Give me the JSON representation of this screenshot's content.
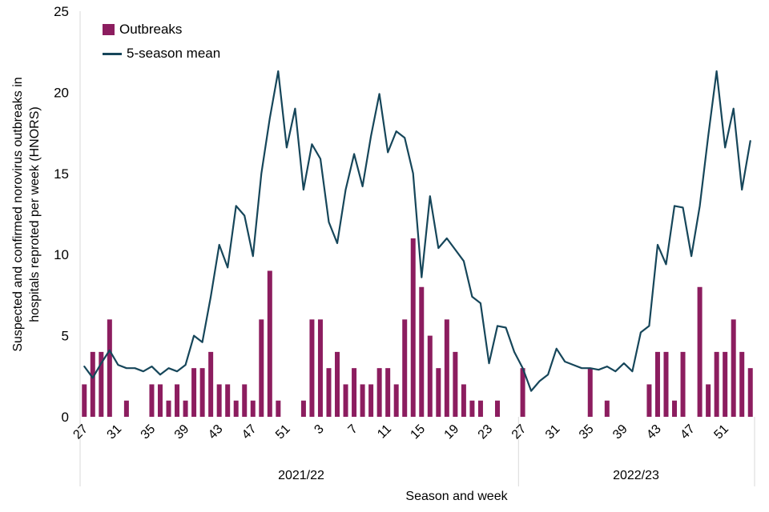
{
  "figure": {
    "y_axis_title_lines": [
      "Suspected and confirmed norovirus outbreaks in",
      "hospitals  reproted per week (HNORS)"
    ],
    "x_axis_title": "Season and week"
  },
  "chart_data": {
    "type": "bar",
    "title": "",
    "xlabel": "Season and week",
    "ylabel": "Suspected and confirmed norovirus outbreaks in hospitals reproted per week (HNORS)",
    "ylim": [
      0,
      25
    ],
    "y_ticks": [
      0,
      5,
      10,
      15,
      20,
      25
    ],
    "grid": false,
    "legend_position": "top-left",
    "x_tick_labels": [
      "27",
      "31",
      "35",
      "39",
      "43",
      "47",
      "51",
      "3",
      "7",
      "11",
      "15",
      "19",
      "23",
      "27",
      "31",
      "35",
      "39",
      "43",
      "47",
      "51"
    ],
    "x_tick_step": 4,
    "seasons": [
      {
        "name": "2021/22",
        "start_index": 0,
        "end_index": 51
      },
      {
        "name": "2022/23",
        "start_index": 52,
        "end_index": 79
      }
    ],
    "categories": [
      "27",
      "28",
      "29",
      "30",
      "31",
      "32",
      "33",
      "34",
      "35",
      "36",
      "37",
      "38",
      "39",
      "40",
      "41",
      "42",
      "43",
      "44",
      "45",
      "46",
      "47",
      "48",
      "49",
      "50",
      "51",
      "52",
      "1",
      "2",
      "3",
      "4",
      "5",
      "6",
      "7",
      "8",
      "9",
      "10",
      "11",
      "12",
      "13",
      "14",
      "15",
      "16",
      "17",
      "18",
      "19",
      "20",
      "21",
      "22",
      "23",
      "24",
      "25",
      "26",
      "27",
      "28",
      "29",
      "30",
      "31",
      "32",
      "33",
      "34",
      "35",
      "36",
      "37",
      "38",
      "39",
      "40",
      "41",
      "42",
      "43",
      "44",
      "45",
      "46",
      "47",
      "48",
      "49",
      "50",
      "51",
      "52",
      "1",
      "2"
    ],
    "series": [
      {
        "name": "Outbreaks",
        "type": "bar",
        "color": "#8c1d5f",
        "values": [
          2,
          4,
          4,
          6,
          0,
          1,
          0,
          0,
          2,
          2,
          1,
          2,
          1,
          3,
          3,
          4,
          2,
          2,
          1,
          2,
          1,
          6,
          9,
          1,
          0,
          0,
          1,
          6,
          6,
          3,
          4,
          2,
          3,
          2,
          2,
          3,
          3,
          2,
          6,
          11,
          8,
          5,
          3,
          6,
          4,
          2,
          1,
          1,
          0,
          1,
          0,
          0,
          3,
          0,
          0,
          0,
          0,
          0,
          0,
          0,
          3,
          0,
          1,
          0,
          0,
          0,
          0,
          2,
          4,
          4,
          1,
          4,
          0,
          8,
          2,
          4,
          4,
          6,
          4,
          3
        ]
      },
      {
        "name": "5-season mean",
        "type": "line",
        "color": "#16465a",
        "values": [
          3.1,
          2.4,
          3.3,
          4.1,
          3.2,
          3.0,
          3.0,
          2.8,
          3.1,
          2.6,
          3.0,
          2.8,
          3.2,
          5.0,
          4.6,
          7.4,
          10.6,
          9.2,
          13.0,
          12.4,
          9.9,
          15.0,
          18.4,
          21.3,
          16.6,
          19.0,
          14.0,
          16.8,
          15.9,
          12.0,
          10.7,
          14.0,
          16.2,
          14.2,
          17.3,
          19.9,
          16.3,
          17.6,
          17.2,
          15.0,
          8.6,
          13.6,
          10.4,
          11.0,
          10.3,
          9.6,
          7.4,
          7.0,
          3.3,
          5.6,
          5.5,
          4.0,
          3.0,
          1.6,
          2.2,
          2.6,
          4.2,
          3.4,
          3.2,
          3.0,
          3.0,
          2.9,
          3.1,
          2.8,
          3.3,
          2.8,
          5.2,
          5.6,
          10.6,
          9.4,
          13.0,
          12.9,
          9.9,
          13.0,
          17.3,
          21.3,
          16.6,
          19.0,
          14.0,
          17.0
        ]
      }
    ],
    "axis_line_color": "#d9d9d9"
  }
}
